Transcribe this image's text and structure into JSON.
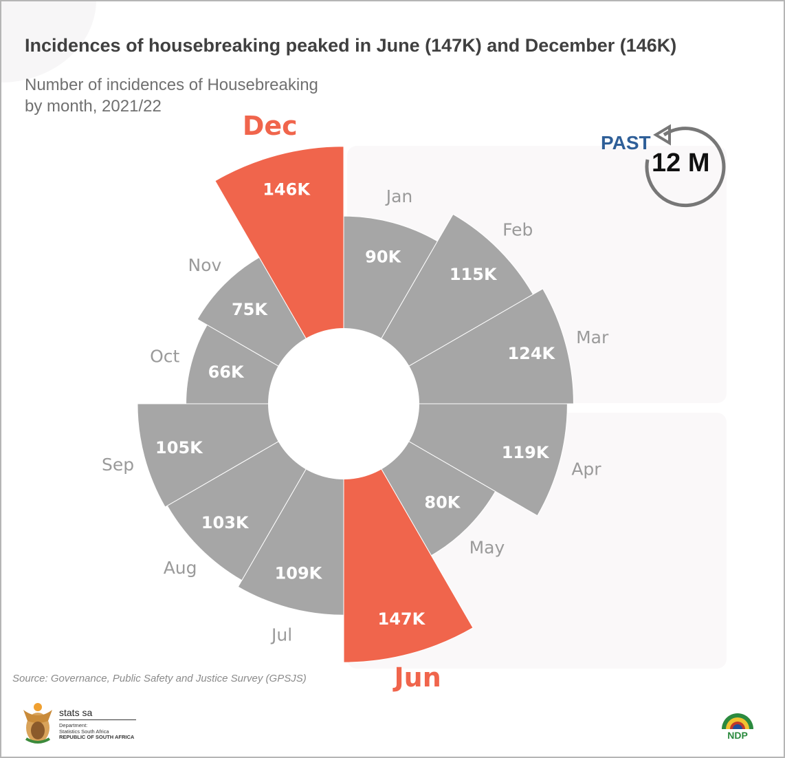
{
  "title": "Incidences of housebreaking peaked in June (147K) and December (146K)",
  "subtitle_line1": "Number of incidences of Housebreaking",
  "subtitle_line2": "by month, 2021/22",
  "badge": {
    "past": "PAST",
    "period": "12 M",
    "icon": "counterclockwise-arrow-icon"
  },
  "source": "Source: Governance, Public Safety and Justice Survey (GPSJS)",
  "logo": {
    "name": "stats sa",
    "line1": "Department:",
    "line2": "Statistics South Africa",
    "line3": "REPUBLIC OF SOUTH AFRICA"
  },
  "ndp_logo": "NDP 2030",
  "colors": {
    "normal": "#a6a6a6",
    "highlight": "#f0654c",
    "month_label": "#9a9a9a"
  },
  "chart_data": {
    "type": "polar-area",
    "title": "Incidences of housebreaking peaked in June (147K) and December (146K)",
    "unit": "thousand incidences",
    "categories": [
      "Jan",
      "Feb",
      "Mar",
      "Apr",
      "May",
      "Jun",
      "Jul",
      "Aug",
      "Sep",
      "Oct",
      "Nov",
      "Dec"
    ],
    "values": [
      90,
      115,
      124,
      119,
      80,
      147,
      109,
      103,
      105,
      66,
      75,
      146
    ],
    "labels": [
      "90K",
      "115K",
      "124K",
      "119K",
      "80K",
      "147K",
      "109K",
      "103K",
      "105K",
      "66K",
      "75K",
      "146K"
    ],
    "highlighted": [
      "Jun",
      "Dec"
    ]
  }
}
